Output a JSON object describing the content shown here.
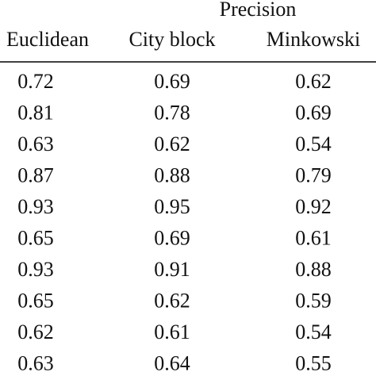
{
  "table": {
    "group_header": "Precision",
    "columns": [
      "Euclidean",
      "City block",
      "Minkowski"
    ],
    "rows": [
      [
        0.72,
        0.69,
        0.62
      ],
      [
        0.81,
        0.78,
        0.69
      ],
      [
        0.63,
        0.62,
        0.54
      ],
      [
        0.87,
        0.88,
        0.79
      ],
      [
        0.93,
        0.95,
        0.92
      ],
      [
        0.65,
        0.69,
        0.61
      ],
      [
        0.93,
        0.91,
        0.88
      ],
      [
        0.65,
        0.62,
        0.59
      ],
      [
        0.62,
        0.61,
        0.54
      ],
      [
        0.63,
        0.64,
        0.55
      ]
    ]
  }
}
